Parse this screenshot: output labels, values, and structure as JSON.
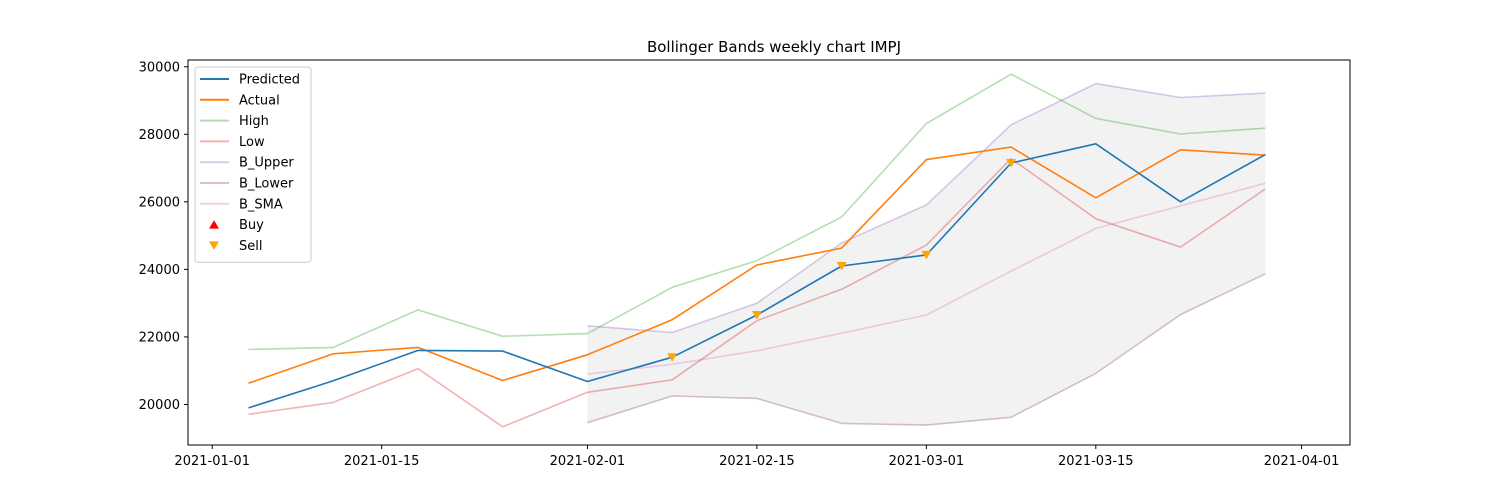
{
  "chart_data": {
    "type": "line",
    "title": "Bollinger Bands weekly chart IMPJ",
    "xlabel": "",
    "ylabel": "",
    "x_ticks": [
      "2021-01-01",
      "2021-01-15",
      "2021-02-01",
      "2021-02-15",
      "2021-03-01",
      "2021-03-15",
      "2021-04-01"
    ],
    "y_ticks": [
      20000,
      22000,
      24000,
      26000,
      28000,
      30000
    ],
    "xlim": [
      "2020-12-30",
      "2021-04-05"
    ],
    "ylim": [
      18800,
      30200
    ],
    "grid": false,
    "legend_position": "top-left",
    "band_fill_color": "#d9d9d9",
    "series": [
      {
        "name": "Predicted",
        "color": "#1f77b4",
        "alpha": 1.0,
        "x": [
          "2021-01-04",
          "2021-01-11",
          "2021-01-18",
          "2021-01-25",
          "2021-02-01",
          "2021-02-08",
          "2021-02-15",
          "2021-02-22",
          "2021-03-01",
          "2021-03-08",
          "2021-03-15",
          "2021-03-22",
          "2021-03-29"
        ],
        "y": [
          19900,
          20700,
          21600,
          21580,
          20680,
          21400,
          22650,
          24100,
          24430,
          27150,
          27720,
          26000,
          27400
        ]
      },
      {
        "name": "Actual",
        "color": "#ff7f0e",
        "alpha": 1.0,
        "x": [
          "2021-01-04",
          "2021-01-11",
          "2021-01-18",
          "2021-01-25",
          "2021-02-01",
          "2021-02-08",
          "2021-02-15",
          "2021-02-22",
          "2021-03-01",
          "2021-03-08",
          "2021-03-15",
          "2021-03-22",
          "2021-03-29"
        ],
        "y": [
          20630,
          21500,
          21690,
          20710,
          21470,
          22510,
          24130,
          24630,
          27250,
          27620,
          26120,
          27540,
          27380
        ]
      },
      {
        "name": "High",
        "color": "#2ca02c",
        "alpha": 0.35,
        "x": [
          "2021-01-04",
          "2021-01-11",
          "2021-01-18",
          "2021-01-25",
          "2021-02-01",
          "2021-02-08",
          "2021-02-15",
          "2021-02-22",
          "2021-03-01",
          "2021-03-08",
          "2021-03-15",
          "2021-03-22",
          "2021-03-29"
        ],
        "y": [
          21630,
          21690,
          22800,
          22020,
          22100,
          23470,
          24260,
          25550,
          28320,
          29780,
          28470,
          28010,
          28180
        ]
      },
      {
        "name": "Low",
        "color": "#d62728",
        "alpha": 0.35,
        "x": [
          "2021-01-04",
          "2021-01-11",
          "2021-01-18",
          "2021-01-25",
          "2021-02-01",
          "2021-02-08",
          "2021-02-15",
          "2021-02-22",
          "2021-03-01",
          "2021-03-08",
          "2021-03-15",
          "2021-03-22",
          "2021-03-29"
        ],
        "y": [
          19710,
          20060,
          21060,
          19340,
          20360,
          20730,
          22480,
          23410,
          24720,
          27280,
          25500,
          24660,
          26380
        ]
      },
      {
        "name": "B_Upper",
        "color": "#9467bd",
        "alpha": 0.35,
        "x": [
          "2021-02-01",
          "2021-02-08",
          "2021-02-15",
          "2021-02-22",
          "2021-03-01",
          "2021-03-08",
          "2021-03-15",
          "2021-03-22",
          "2021-03-29"
        ],
        "y": [
          22330,
          22130,
          23000,
          24780,
          25910,
          28280,
          29500,
          29090,
          29220
        ]
      },
      {
        "name": "B_Lower",
        "color": "#8c564b",
        "alpha": 0.35,
        "x": [
          "2021-02-01",
          "2021-02-08",
          "2021-02-15",
          "2021-02-22",
          "2021-03-01",
          "2021-03-08",
          "2021-03-15",
          "2021-03-22",
          "2021-03-29"
        ],
        "y": [
          19460,
          20250,
          20180,
          19440,
          19390,
          19620,
          20920,
          22660,
          23870
        ]
      },
      {
        "name": "B_SMA",
        "color": "#e377c2",
        "alpha": 0.35,
        "x": [
          "2021-02-01",
          "2021-02-08",
          "2021-02-15",
          "2021-02-22",
          "2021-03-01",
          "2021-03-08",
          "2021-03-15",
          "2021-03-22",
          "2021-03-29"
        ],
        "y": [
          20900,
          21190,
          21590,
          22110,
          22650,
          23950,
          25210,
          25880,
          26550
        ]
      }
    ],
    "markers": [
      {
        "name": "Buy",
        "color": "#ff0000",
        "symbol": "triangle-up",
        "x": [],
        "y": []
      },
      {
        "name": "Sell",
        "color": "#ffa500",
        "symbol": "triangle-down",
        "x": [
          "2021-02-08",
          "2021-02-15",
          "2021-02-22",
          "2021-03-01",
          "2021-03-08"
        ],
        "y": [
          21400,
          22650,
          24100,
          24430,
          27150
        ]
      }
    ]
  }
}
